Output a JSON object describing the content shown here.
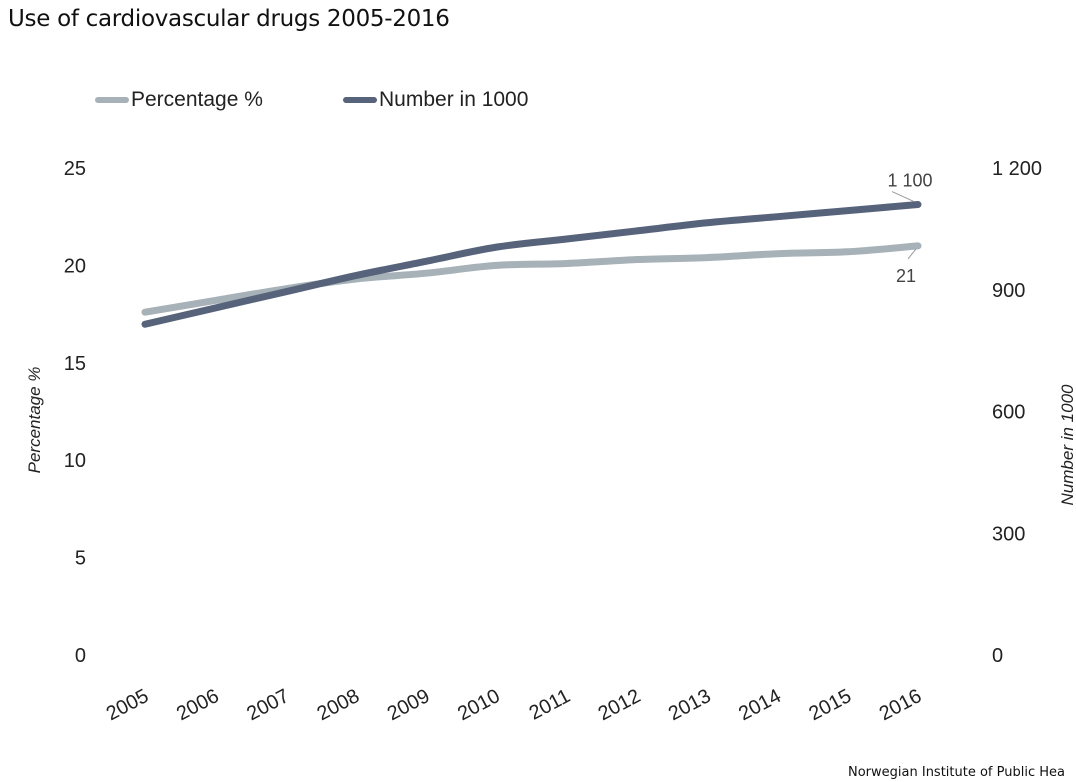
{
  "chart_data": {
    "type": "line",
    "title": "Use of cardiovascular drugs 2005-2016",
    "categories": [
      "2005",
      "2006",
      "2007",
      "2008",
      "2009",
      "2010",
      "2011",
      "2012",
      "2013",
      "2014",
      "2015",
      "2016"
    ],
    "series": [
      {
        "name": "Percentage %",
        "axis": "left",
        "color": "#a7b1b8",
        "values": [
          17.6,
          18.2,
          18.8,
          19.3,
          19.6,
          20.0,
          20.1,
          20.3,
          20.4,
          20.6,
          20.7,
          21.0
        ]
      },
      {
        "name": "Number in 1000",
        "axis": "right",
        "color": "#56637a",
        "values": [
          815,
          855,
          895,
          935,
          970,
          1005,
          1025,
          1045,
          1065,
          1080,
          1095,
          1110
        ]
      }
    ],
    "ylabel": "Percentage %",
    "y2label": "Number in 1000",
    "ylim": [
      0,
      25
    ],
    "y2lim": [
      0,
      1200
    ],
    "yticks": [
      "0",
      "5",
      "10",
      "15",
      "20",
      "25"
    ],
    "y2ticks": [
      "0",
      "300",
      "600",
      "900",
      "1 200"
    ],
    "annotations": [
      {
        "series": "Number in 1000",
        "category": "2016",
        "text": "1 100"
      },
      {
        "series": "Percentage %",
        "category": "2016",
        "text": "21"
      }
    ],
    "legend_position": "top-left",
    "grid": false
  },
  "source": "Norwegian Institute of Public Hea"
}
